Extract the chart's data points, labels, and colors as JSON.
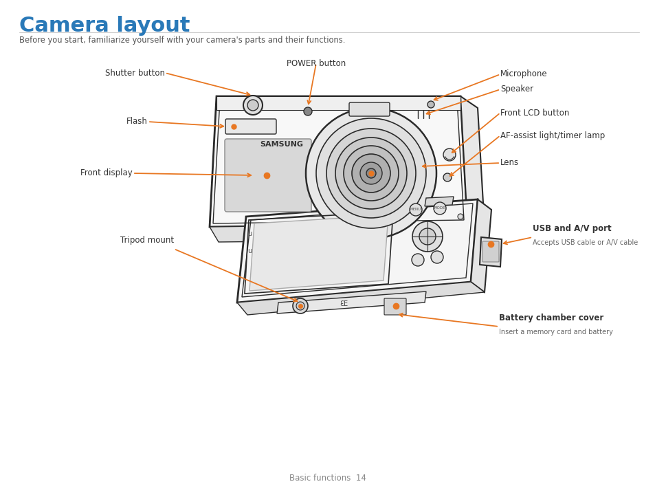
{
  "title": "Camera layout",
  "subtitle": "Before you start, familiarize yourself with your camera's parts and their functions.",
  "title_color": "#2979b8",
  "subtitle_color": "#555555",
  "arrow_color": "#e87722",
  "label_color": "#333333",
  "label_color_bold": "#222222",
  "bg_color": "#ffffff",
  "line_color": "#2a2a2a",
  "footer_text": "Basic functions  14",
  "footer_color": "#888888"
}
